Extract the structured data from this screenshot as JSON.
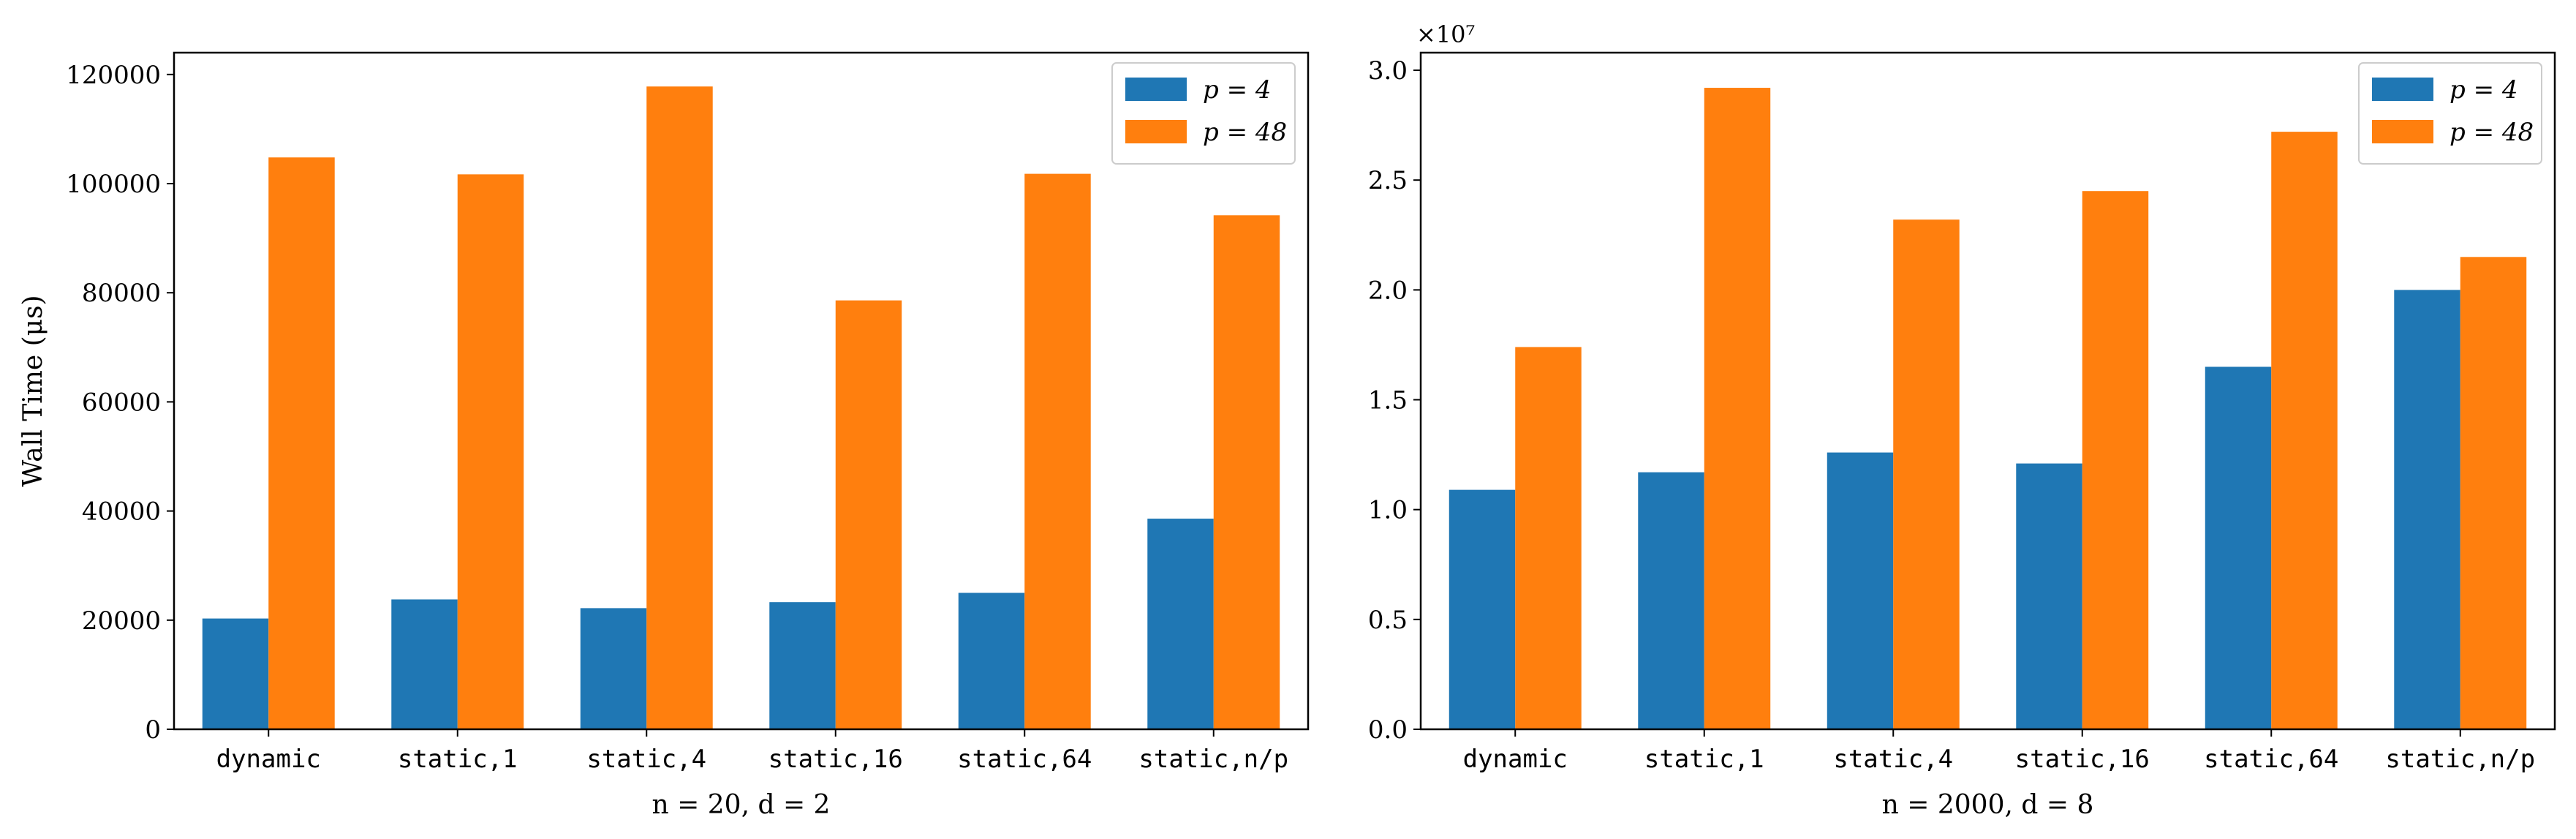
{
  "chart_data": [
    {
      "type": "bar",
      "categories": [
        "dynamic",
        "static,1",
        "static,4",
        "static,16",
        "static,64",
        "static,n/p"
      ],
      "series": [
        {
          "name": "p = 4",
          "color": "#1f77b4",
          "values": [
            20300,
            23800,
            22200,
            23300,
            25000,
            38600
          ]
        },
        {
          "name": "p = 48",
          "color": "#ff7f0e",
          "values": [
            104800,
            101700,
            117800,
            78600,
            101800,
            94200
          ]
        }
      ],
      "xlabel": "n = 20, d = 2",
      "ylabel": "Wall Time (μs)",
      "ylim": [
        0,
        124000
      ],
      "yticks": [
        0,
        20000,
        40000,
        60000,
        80000,
        100000,
        120000
      ],
      "ytick_labels": [
        "0",
        "20000",
        "40000",
        "60000",
        "80000",
        "100000",
        "120000"
      ],
      "offset_text": "",
      "legend_position": "top-right",
      "grid": false
    },
    {
      "type": "bar",
      "categories": [
        "dynamic",
        "static,1",
        "static,4",
        "static,16",
        "static,64",
        "static,n/p"
      ],
      "series": [
        {
          "name": "p = 4",
          "color": "#1f77b4",
          "values": [
            1.09,
            1.17,
            1.26,
            1.21,
            1.65,
            2.0
          ]
        },
        {
          "name": "p = 48",
          "color": "#ff7f0e",
          "values": [
            1.74,
            2.92,
            2.32,
            2.45,
            2.72,
            2.15
          ]
        }
      ],
      "xlabel": "n = 2000, d = 8",
      "ylabel": "",
      "ylim": [
        0,
        3.08
      ],
      "yticks": [
        0,
        0.5,
        1.0,
        1.5,
        2.0,
        2.5,
        3.0
      ],
      "ytick_labels": [
        "0.0",
        "0.5",
        "1.0",
        "1.5",
        "2.0",
        "2.5",
        "3.0"
      ],
      "offset_text": "×10⁷",
      "legend_position": "top-right",
      "grid": false
    }
  ]
}
